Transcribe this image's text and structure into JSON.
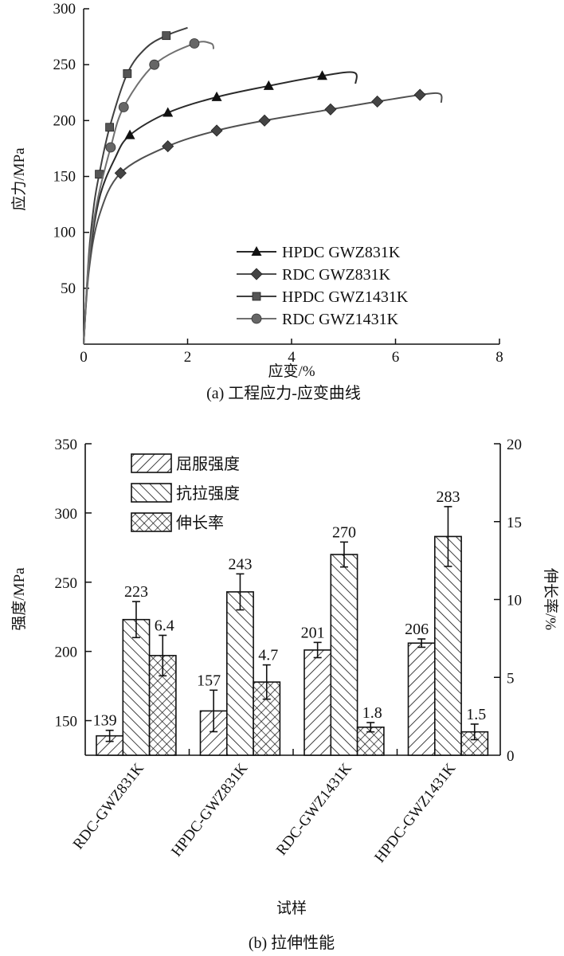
{
  "chart_data": [
    {
      "type": "line",
      "caption": "(a) 工程应力-应变曲线",
      "xlabel": "应变/%",
      "ylabel": "应力/MPa",
      "xlim": [
        0,
        8
      ],
      "ylim": [
        0,
        300
      ],
      "xticks": [
        0,
        2,
        4,
        6,
        8
      ],
      "yticks": [
        50,
        100,
        150,
        200,
        250,
        300
      ],
      "grid": false,
      "legend_position": "bottom-right",
      "series": [
        {
          "name": "HPDC GWZ831K",
          "marker": "triangle",
          "color": "#2a2a2a",
          "curve": [
            [
              0,
              0
            ],
            [
              0.1,
              70
            ],
            [
              0.3,
              130
            ],
            [
              0.6,
              166
            ],
            [
              0.89,
              187
            ],
            [
              1.62,
              207
            ],
            [
              2.56,
              221
            ],
            [
              3.56,
              231
            ],
            [
              4.59,
              240
            ],
            [
              5.2,
              243
            ],
            [
              5.23,
              233
            ]
          ],
          "markers": [
            [
              0.89,
              187
            ],
            [
              1.62,
              207
            ],
            [
              2.56,
              221
            ],
            [
              3.56,
              231
            ],
            [
              4.59,
              240
            ]
          ]
        },
        {
          "name": "RDC GWZ831K",
          "marker": "diamond",
          "color": "#505050",
          "curve": [
            [
              0,
              0
            ],
            [
              0.1,
              65
            ],
            [
              0.3,
              115
            ],
            [
              0.71,
              153
            ],
            [
              1.62,
              177
            ],
            [
              2.56,
              191
            ],
            [
              3.48,
              200
            ],
            [
              4.75,
              210
            ],
            [
              5.65,
              217
            ],
            [
              6.47,
              223
            ],
            [
              6.85,
              224
            ],
            [
              6.88,
              216
            ]
          ],
          "markers": [
            [
              0.71,
              153
            ],
            [
              1.62,
              177
            ],
            [
              2.56,
              191
            ],
            [
              3.48,
              200
            ],
            [
              4.75,
              210
            ],
            [
              5.65,
              217
            ],
            [
              6.47,
              223
            ]
          ]
        },
        {
          "name": "HPDC GWZ1431K",
          "marker": "square",
          "color": "#404040",
          "curve": [
            [
              0,
              0
            ],
            [
              0.1,
              80
            ],
            [
              0.2,
              125
            ],
            [
              0.3,
              152
            ],
            [
              0.5,
              194
            ],
            [
              0.84,
              242
            ],
            [
              1.2,
              265
            ],
            [
              1.59,
              276
            ],
            [
              2.0,
              283
            ]
          ],
          "markers": [
            [
              0.3,
              152
            ],
            [
              0.5,
              194
            ],
            [
              0.84,
              242
            ],
            [
              1.59,
              276
            ]
          ]
        },
        {
          "name": "RDC GWZ1431K",
          "marker": "circle",
          "color": "#707070",
          "curve": [
            [
              0,
              0
            ],
            [
              0.1,
              75
            ],
            [
              0.25,
              125
            ],
            [
              0.52,
              176
            ],
            [
              0.77,
              212
            ],
            [
              1.36,
              250
            ],
            [
              2.13,
              269
            ],
            [
              2.45,
              269
            ],
            [
              2.5,
              264
            ]
          ],
          "markers": [
            [
              0.52,
              176
            ],
            [
              0.77,
              212
            ],
            [
              1.36,
              250
            ],
            [
              2.13,
              269
            ]
          ]
        }
      ]
    },
    {
      "type": "bar",
      "caption": "(b) 拉伸性能",
      "xlabel": "试样",
      "ylabel": "强度/MPa",
      "y2label": "伸长率/%",
      "ylim": [
        125,
        350
      ],
      "y2lim": [
        0,
        20
      ],
      "yticks": [
        150,
        200,
        250,
        300,
        350
      ],
      "y2ticks": [
        0,
        5,
        10,
        15,
        20
      ],
      "legend_position": "top-left",
      "categories": [
        "RDC-GWZ831K",
        "HPDC-GWZ831K",
        "RDC-GWZ1431K",
        "HPDC-GWZ1431K"
      ],
      "series": [
        {
          "name": "屈服强度",
          "axis": "left",
          "pattern": "forward-hatch",
          "values": [
            139,
            157,
            201,
            206
          ],
          "labels": [
            "139",
            "157",
            "201",
            "206"
          ],
          "errors": [
            4,
            15,
            5.5,
            3
          ]
        },
        {
          "name": "抗拉强度",
          "axis": "left",
          "pattern": "back-hatch",
          "values": [
            223,
            243,
            270,
            283
          ],
          "labels": [
            "223",
            "243",
            "270",
            "283"
          ],
          "errors": [
            13,
            13,
            9,
            21.6
          ]
        },
        {
          "name": "伸长率",
          "axis": "right",
          "pattern": "cross-hatch",
          "values": [
            6.4,
            4.7,
            1.8,
            1.5
          ],
          "labels": [
            "6.4",
            "4.7",
            "1.8",
            "1.5"
          ],
          "errors": [
            1.3,
            1.1,
            0.3,
            0.5
          ]
        }
      ]
    }
  ]
}
